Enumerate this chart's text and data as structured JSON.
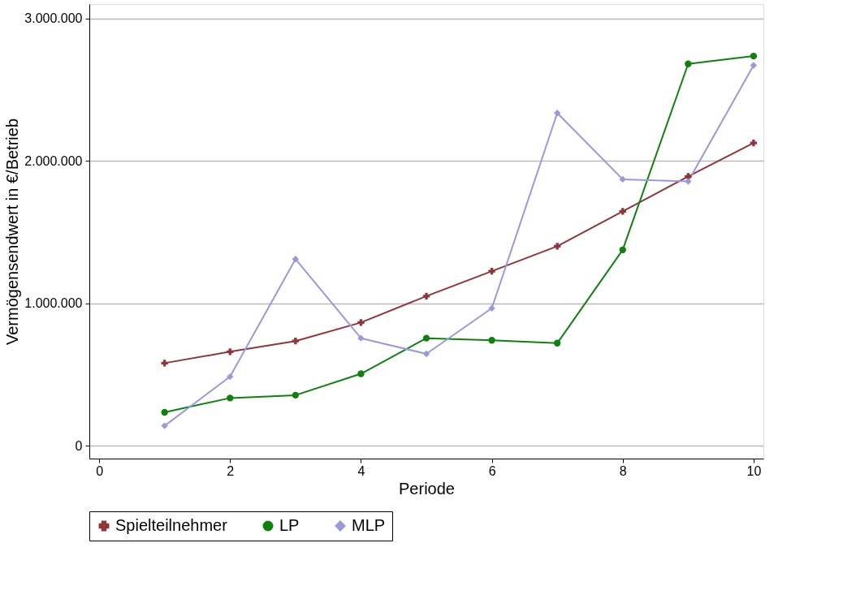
{
  "chart_data": {
    "type": "line",
    "xlabel": "Periode",
    "ylabel": "Vermögensendwert in €/Betrieb",
    "x": [
      1,
      2,
      3,
      4,
      5,
      6,
      7,
      8,
      9,
      10
    ],
    "series": [
      {
        "name": "Spielteilnehmer",
        "color": "#90353b",
        "marker": "cross",
        "values": [
          580000,
          660000,
          735000,
          865000,
          1050000,
          1225000,
          1400000,
          1645000,
          1890000,
          2125000
        ]
      },
      {
        "name": "LP",
        "color": "#108010",
        "marker": "circle",
        "values": [
          235000,
          335000,
          355000,
          505000,
          755000,
          740000,
          720000,
          1375000,
          2680000,
          2735000
        ]
      },
      {
        "name": "MLP",
        "color": "#9a9ad8",
        "marker": "diamond",
        "values": [
          140000,
          485000,
          1310000,
          755000,
          645000,
          965000,
          2335000,
          1870000,
          1855000,
          2670000
        ]
      }
    ],
    "xlim": [
      -0.15,
      10.15
    ],
    "xticks": [
      0,
      2,
      4,
      6,
      8,
      10
    ],
    "ylim": [
      -90000,
      3100000
    ],
    "yticks": [
      {
        "value": 0,
        "label": "0"
      },
      {
        "value": 1000000,
        "label": "1.000.000"
      },
      {
        "value": 2000000,
        "label": "2.000.000"
      },
      {
        "value": 3000000,
        "label": "3.000.000"
      }
    ],
    "grid": "y",
    "legend": "bottom",
    "line_style": "solid"
  }
}
